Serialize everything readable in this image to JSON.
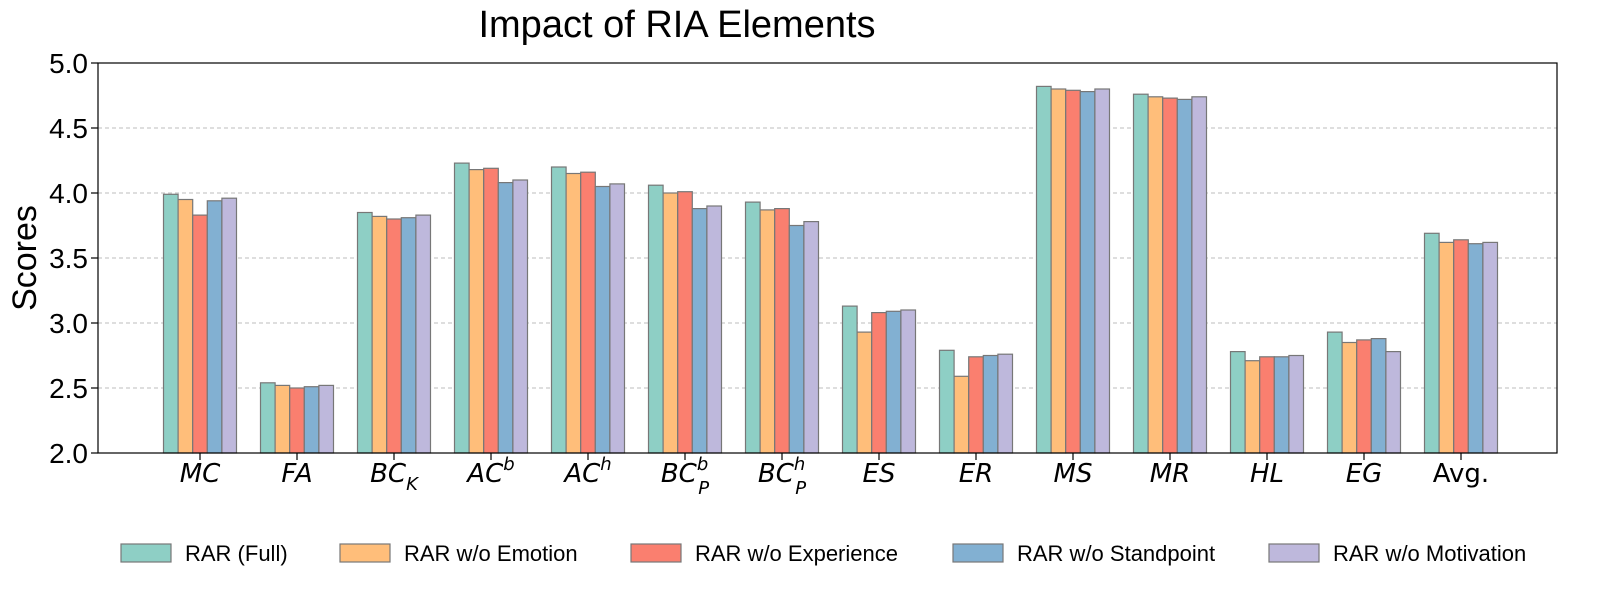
{
  "chart_data": {
    "type": "bar",
    "title": "Impact of RIA Elements",
    "xlabel": "",
    "ylabel": "Scores",
    "ylim": [
      2.0,
      5.0
    ],
    "yticks": [
      "2.0",
      "2.5",
      "3.0",
      "3.5",
      "4.0",
      "4.5",
      "5.0"
    ],
    "grid": "horizontal dashed",
    "legend_position": "bottom",
    "categories": [
      {
        "base": "MC",
        "italic": true
      },
      {
        "base": "FA",
        "italic": true
      },
      {
        "base": "BC",
        "sub": "K",
        "italic": true
      },
      {
        "base": "AC",
        "sup": "b",
        "italic": true
      },
      {
        "base": "AC",
        "sup": "h",
        "italic": true
      },
      {
        "base": "BC",
        "sup": "b",
        "sub": "P",
        "italic": true
      },
      {
        "base": "BC",
        "sup": "h",
        "sub": "P",
        "italic": true
      },
      {
        "base": "ES",
        "italic": true
      },
      {
        "base": "ER",
        "italic": true
      },
      {
        "base": "MS",
        "italic": true
      },
      {
        "base": "MR",
        "italic": true
      },
      {
        "base": "HL",
        "italic": true
      },
      {
        "base": "EG",
        "italic": true
      },
      {
        "base": "Avg.",
        "italic": false
      }
    ],
    "series": [
      {
        "name": "RAR (Full)",
        "color": "#8ecfc5",
        "values": [
          3.99,
          2.54,
          3.85,
          4.23,
          4.2,
          4.06,
          3.93,
          3.13,
          2.79,
          4.82,
          4.76,
          2.78,
          2.93,
          3.69
        ]
      },
      {
        "name": "RAR w/o Emotion",
        "color": "#ffbe7a",
        "values": [
          3.95,
          2.52,
          3.82,
          4.18,
          4.15,
          4.0,
          3.87,
          2.93,
          2.59,
          4.8,
          4.74,
          2.71,
          2.85,
          3.62
        ]
      },
      {
        "name": "RAR w/o Experience",
        "color": "#fa7f6f",
        "values": [
          3.83,
          2.5,
          3.8,
          4.19,
          4.16,
          4.01,
          3.88,
          3.08,
          2.74,
          4.79,
          4.73,
          2.74,
          2.87,
          3.64
        ]
      },
      {
        "name": "RAR w/o Standpoint",
        "color": "#82b0d2",
        "values": [
          3.94,
          2.51,
          3.81,
          4.08,
          4.05,
          3.88,
          3.75,
          3.09,
          2.75,
          4.78,
          4.72,
          2.74,
          2.88,
          3.61
        ]
      },
      {
        "name": "RAR w/o Motivation",
        "color": "#beb8dc",
        "values": [
          3.96,
          2.52,
          3.83,
          4.1,
          4.07,
          3.9,
          3.78,
          3.1,
          2.76,
          4.8,
          4.74,
          2.75,
          2.78,
          3.62
        ]
      }
    ]
  }
}
